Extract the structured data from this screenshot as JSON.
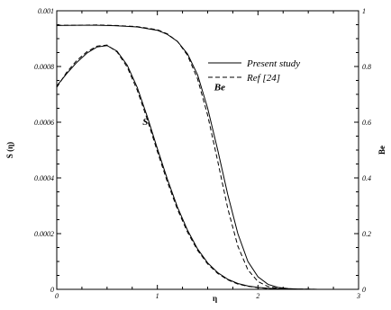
{
  "chart_data": {
    "type": "line",
    "xlabel": "η",
    "ylabel_left": "S (η)",
    "ylabel_right": "Be",
    "xlim": [
      0,
      3
    ],
    "ylim_left": [
      0,
      0.001
    ],
    "ylim_right": [
      0,
      1
    ],
    "x_ticks": [
      0,
      1,
      2,
      3
    ],
    "y_left_ticks": [
      0,
      0.0002,
      0.0004,
      0.0006,
      0.0008,
      0.001
    ],
    "y_right_ticks": [
      0,
      0.2,
      0.4,
      0.6,
      0.8,
      1
    ],
    "grid": false,
    "legend_position": "top-right",
    "legend": [
      {
        "label": "Present study",
        "style": "solid"
      },
      {
        "label": "Ref [24]",
        "style": "dashed"
      }
    ],
    "curve_labels": [
      {
        "text": "S",
        "x": 0.88,
        "y_left": 0.00059
      },
      {
        "text": "Be",
        "x": 1.62,
        "y_left": 0.000715
      }
    ],
    "series": [
      {
        "name": "S",
        "axis": "left",
        "style": "solid",
        "x": [
          0,
          0.1,
          0.2,
          0.3,
          0.4,
          0.5,
          0.6,
          0.7,
          0.8,
          0.9,
          1.0,
          1.1,
          1.2,
          1.3,
          1.4,
          1.5,
          1.6,
          1.7,
          1.8,
          1.9,
          2.0,
          2.1,
          2.2,
          2.4,
          2.6,
          2.8,
          3.0
        ],
        "y": [
          0.00073,
          0.000775,
          0.000815,
          0.000848,
          0.00087,
          0.000875,
          0.000855,
          0.000805,
          0.000725,
          0.00062,
          0.000505,
          0.000395,
          0.000295,
          0.000212,
          0.000145,
          9.5e-05,
          6e-05,
          3.6e-05,
          2.1e-05,
          1.2e-05,
          7e-06,
          4e-06,
          2e-06,
          1e-06,
          0,
          0,
          0
        ]
      },
      {
        "name": "S",
        "axis": "left",
        "style": "dashed",
        "x": [
          0,
          0.1,
          0.2,
          0.3,
          0.4,
          0.5,
          0.6,
          0.7,
          0.8,
          0.9,
          1.0,
          1.1,
          1.2,
          1.3,
          1.4,
          1.5,
          1.6,
          1.7,
          1.8,
          1.9,
          2.0,
          2.1,
          2.2,
          2.4,
          2.6,
          2.8,
          3.0
        ],
        "y": [
          0.000725,
          0.00078,
          0.000822,
          0.000853,
          0.000873,
          0.000877,
          0.000852,
          0.000798,
          0.000715,
          0.00061,
          0.000495,
          0.000385,
          0.000287,
          0.000205,
          0.00014,
          9.1e-05,
          5.7e-05,
          3.4e-05,
          1.9e-05,
          1.1e-05,
          6e-06,
          3e-06,
          2e-06,
          1e-06,
          0,
          0,
          0
        ]
      },
      {
        "name": "Be",
        "axis": "right",
        "style": "solid",
        "x": [
          0,
          0.2,
          0.4,
          0.6,
          0.8,
          1.0,
          1.1,
          1.2,
          1.3,
          1.4,
          1.5,
          1.6,
          1.7,
          1.8,
          1.9,
          2.0,
          2.1,
          2.2,
          2.3,
          2.4,
          2.6,
          2.8,
          3.0
        ],
        "y": [
          0.947,
          0.948,
          0.948,
          0.946,
          0.942,
          0.93,
          0.915,
          0.89,
          0.845,
          0.77,
          0.65,
          0.5,
          0.34,
          0.2,
          0.1,
          0.045,
          0.018,
          0.007,
          0.003,
          0.001,
          0,
          0,
          0
        ]
      },
      {
        "name": "Be",
        "axis": "right",
        "style": "dashed",
        "x": [
          0,
          0.2,
          0.4,
          0.6,
          0.8,
          1.0,
          1.1,
          1.2,
          1.3,
          1.4,
          1.5,
          1.6,
          1.7,
          1.8,
          1.9,
          2.0,
          2.1,
          2.2,
          2.3,
          2.4,
          2.6,
          2.8,
          3.0
        ],
        "y": [
          0.948,
          0.948,
          0.949,
          0.947,
          0.943,
          0.932,
          0.917,
          0.89,
          0.84,
          0.755,
          0.625,
          0.46,
          0.29,
          0.155,
          0.07,
          0.028,
          0.01,
          0.004,
          0.001,
          0,
          0,
          0,
          0
        ]
      }
    ]
  }
}
